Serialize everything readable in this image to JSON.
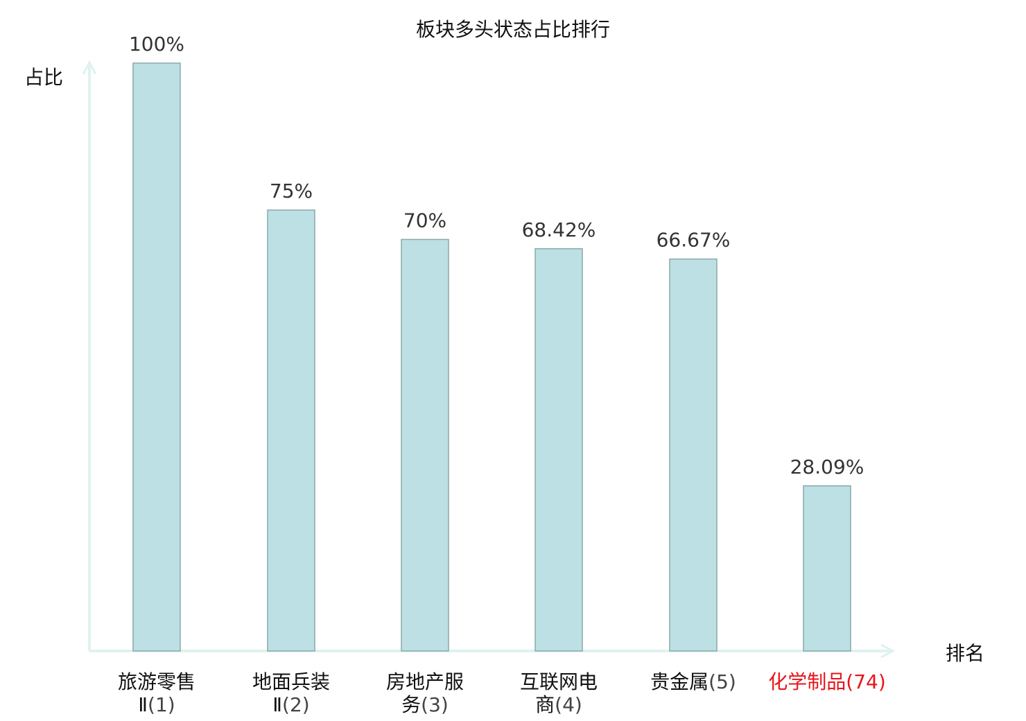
{
  "chart_data": {
    "type": "bar",
    "title": "板块多头状态占比排行",
    "ylabel": "占比",
    "xlabel": "排名",
    "ylim": [
      0,
      100
    ],
    "grid": false,
    "categories": [
      {
        "name": "旅游零售Ⅱ",
        "rank": 1,
        "highlight": false
      },
      {
        "name": "地面兵装Ⅱ",
        "rank": 2,
        "highlight": false
      },
      {
        "name": "房地产服务",
        "rank": 3,
        "highlight": false
      },
      {
        "name": "互联网电商",
        "rank": 4,
        "highlight": false
      },
      {
        "name": "贵金属",
        "rank": 5,
        "highlight": false
      },
      {
        "name": "化学制品",
        "rank": 74,
        "highlight": true
      }
    ],
    "values": [
      100,
      75,
      70,
      68.42,
      66.67,
      28.09
    ],
    "data_labels": [
      "100%",
      "75%",
      "70%",
      "68.42%",
      "66.67%",
      "28.09%"
    ],
    "colors": {
      "bar_fill": "#bce0e3",
      "bar_stroke": "#8aa9aa",
      "axis": "#dff2ef",
      "highlight_label": "#e8141a"
    }
  }
}
